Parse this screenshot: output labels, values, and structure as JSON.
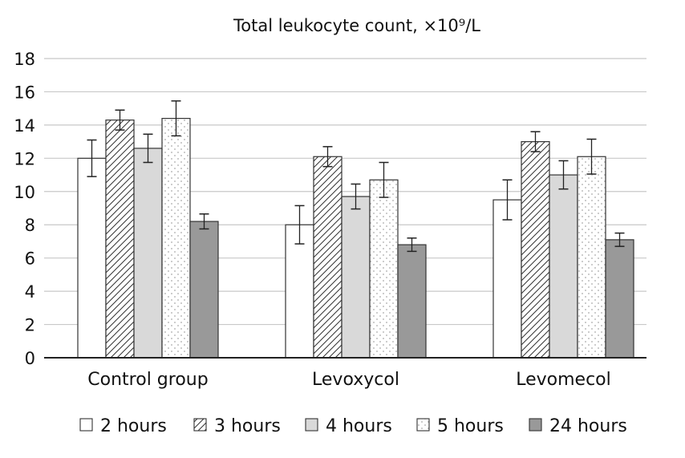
{
  "chart_data": {
    "type": "bar",
    "title": "Total leukocyte count, ×10⁹/L",
    "xlabel": "",
    "ylabel": "",
    "ylim": [
      0,
      18
    ],
    "yticks": [
      "0",
      "2",
      "4",
      "6",
      "8",
      "10",
      "12",
      "14",
      "16",
      "18"
    ],
    "grid": true,
    "legend_position": "bottom",
    "categories": [
      "Control group",
      "Levoxycol",
      "Levomecol"
    ],
    "series": [
      {
        "name": "2 hours",
        "pattern": "solid",
        "fill": "#ffffff",
        "values": [
          12.0,
          8.0,
          9.5
        ],
        "errors": [
          1.1,
          1.15,
          1.2
        ]
      },
      {
        "name": "3 hours",
        "pattern": "diagonal-hatch",
        "fill": "#ffffff",
        "values": [
          14.3,
          12.1,
          13.0
        ],
        "errors": [
          0.6,
          0.6,
          0.6
        ]
      },
      {
        "name": "4 hours",
        "pattern": "solid",
        "fill": "#d9d9d9",
        "values": [
          12.6,
          9.7,
          11.0
        ],
        "errors": [
          0.85,
          0.75,
          0.85
        ]
      },
      {
        "name": "5 hours",
        "pattern": "dots",
        "fill": "#ffffff",
        "values": [
          14.4,
          10.7,
          12.1
        ],
        "errors": [
          1.05,
          1.05,
          1.05
        ]
      },
      {
        "name": "24 hours",
        "pattern": "solid",
        "fill": "#999999",
        "values": [
          8.2,
          6.8,
          7.1
        ],
        "errors": [
          0.45,
          0.4,
          0.4
        ]
      }
    ]
  }
}
